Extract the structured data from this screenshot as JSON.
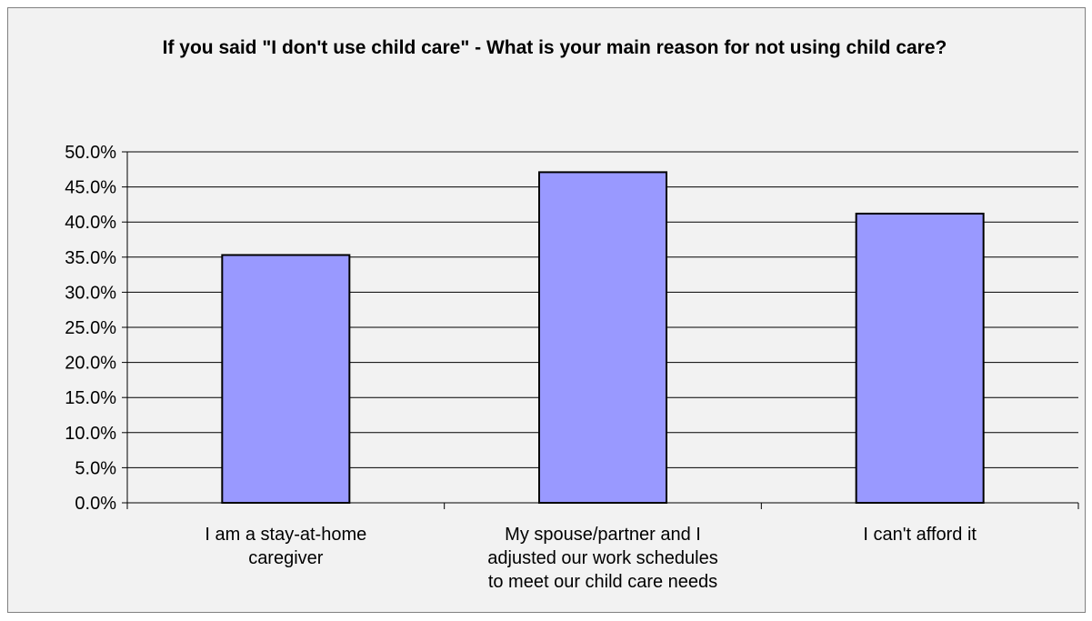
{
  "chart_data": {
    "type": "bar",
    "title": "If you said \"I don't use child care\" - What is your main reason for not using child care?",
    "categories": [
      [
        "I am a stay-at-home",
        "caregiver"
      ],
      [
        "My spouse/partner and I",
        "adjusted our work schedules",
        "to meet our child care needs"
      ],
      [
        "I can't afford it"
      ]
    ],
    "values": [
      35.3,
      47.1,
      41.2
    ],
    "ylim": [
      0,
      50
    ],
    "ytick_step": 5,
    "ytick_labels": [
      "0.0%",
      "5.0%",
      "10.0%",
      "15.0%",
      "20.0%",
      "25.0%",
      "30.0%",
      "35.0%",
      "40.0%",
      "45.0%",
      "50.0%"
    ],
    "grid": true,
    "legend": "none",
    "colors": {
      "bar": "#9999ff",
      "bar_border": "#000000",
      "grid": "#000000",
      "background": "#f2f2f2"
    }
  }
}
